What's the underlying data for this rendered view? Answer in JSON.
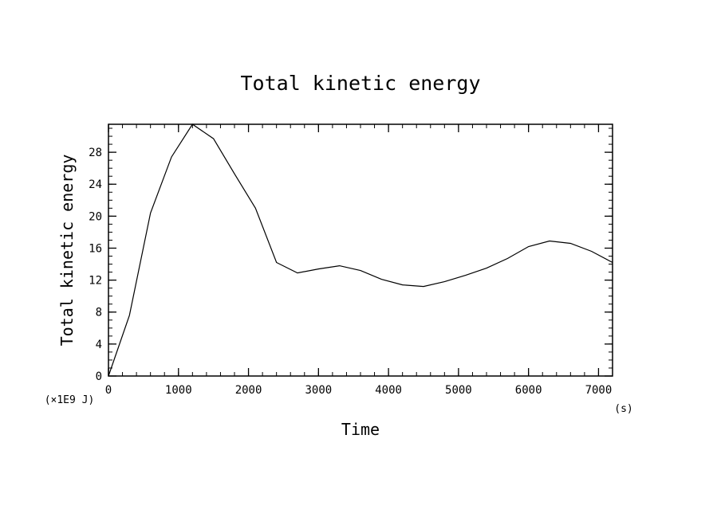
{
  "chart_data": {
    "type": "line",
    "title": "Total kinetic energy",
    "xlabel": "Time",
    "ylabel": "Total kinetic energy",
    "x_unit": "(s)",
    "y_unit": "(×1E9 J)",
    "xlim": [
      0,
      7200
    ],
    "ylim": [
      0,
      31.5
    ],
    "xticks": [
      0,
      1000,
      2000,
      3000,
      4000,
      5000,
      6000,
      7000
    ],
    "yticks": [
      0,
      4,
      8,
      12,
      16,
      20,
      24,
      28
    ],
    "grid": false,
    "line_color": "#000000",
    "series": [
      {
        "x": [
          0,
          300,
          600,
          900,
          1200,
          1500,
          1800,
          2100,
          2400,
          2700,
          3000,
          3300,
          3600,
          3900,
          4200,
          4500,
          4800,
          5100,
          5400,
          5700,
          6000,
          6300,
          6600,
          6900,
          7200
        ],
        "y": [
          0,
          7.6,
          20.4,
          27.4,
          31.5,
          29.7,
          25.3,
          21.0,
          14.2,
          12.9,
          13.4,
          13.8,
          13.2,
          12.1,
          11.4,
          11.2,
          11.8,
          12.6,
          13.5,
          14.7,
          16.2,
          16.9,
          16.6,
          15.6,
          14.2
        ]
      }
    ]
  }
}
